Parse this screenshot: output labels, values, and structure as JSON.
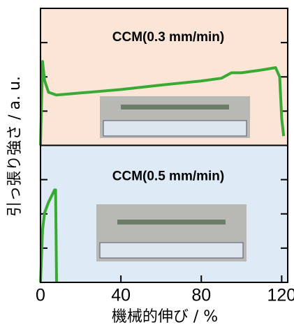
{
  "chart_data": {
    "type": "line",
    "ylabel": "引っ張り強さ / a. u.",
    "xlabel": "機械的伸び / %",
    "xlim": [
      0,
      123
    ],
    "xticks": [
      0,
      40,
      80,
      120
    ],
    "panels": [
      {
        "annotation": "CCM(0.3 mm/min)",
        "background": "#fbe5d6",
        "color": "#3aaa35",
        "ylim": [
          0,
          4
        ],
        "x": [
          0,
          0.5,
          1,
          2,
          4,
          8,
          20,
          40,
          60,
          80,
          90,
          95,
          100,
          110,
          117,
          119,
          120,
          121
        ],
        "values": [
          0,
          1.18,
          2.45,
          1.9,
          1.55,
          1.47,
          1.53,
          1.63,
          1.76,
          1.88,
          1.96,
          2.12,
          2.12,
          2.2,
          2.27,
          2.0,
          0.78,
          0.27
        ]
      },
      {
        "annotation": "CCM(0.5 mm/min)",
        "background": "#deebf7",
        "color": "#3aaa35",
        "ylim": [
          0,
          4
        ],
        "x": [
          0,
          1,
          2,
          4,
          6,
          7,
          7.5,
          8
        ],
        "values": [
          0,
          1.52,
          2.03,
          2.34,
          2.58,
          2.7,
          2.7,
          0
        ]
      }
    ]
  }
}
